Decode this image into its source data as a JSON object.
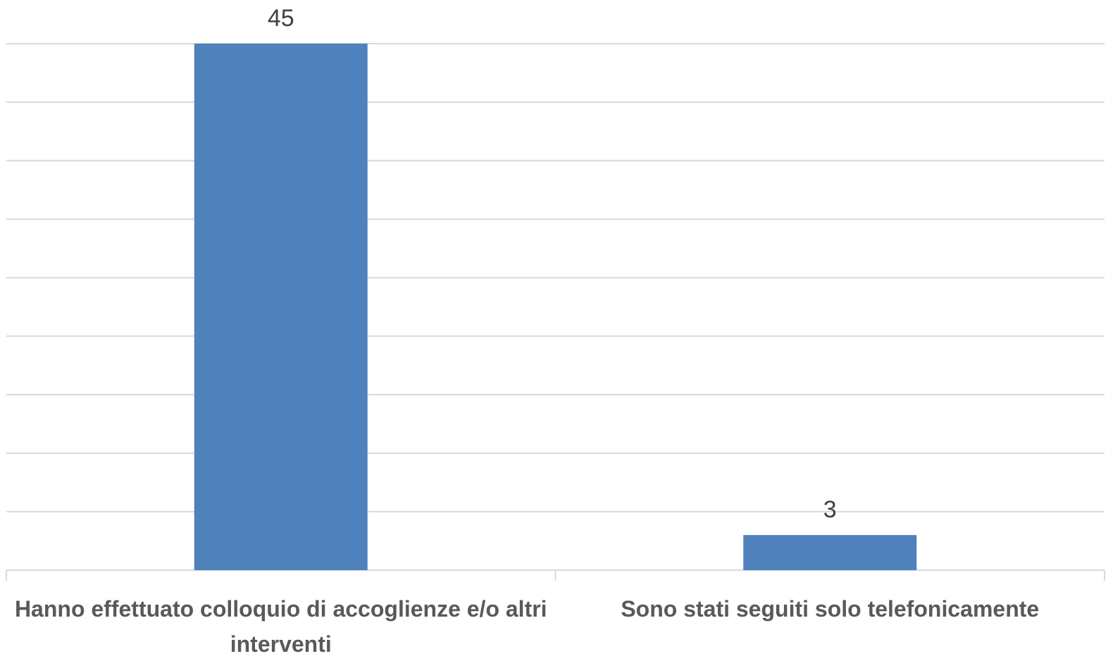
{
  "chart_data": {
    "type": "bar",
    "categories": [
      "Hanno effettuato colloquio di accoglienze e/o altri interventi",
      "Sono stati seguiti solo telefonicamente"
    ],
    "values": [
      45,
      3
    ],
    "color": "#4f81bd",
    "ylim": [
      0,
      45
    ],
    "yticks": [
      0,
      5,
      10,
      15,
      20,
      25,
      30,
      35,
      40,
      45
    ],
    "grid": true
  }
}
